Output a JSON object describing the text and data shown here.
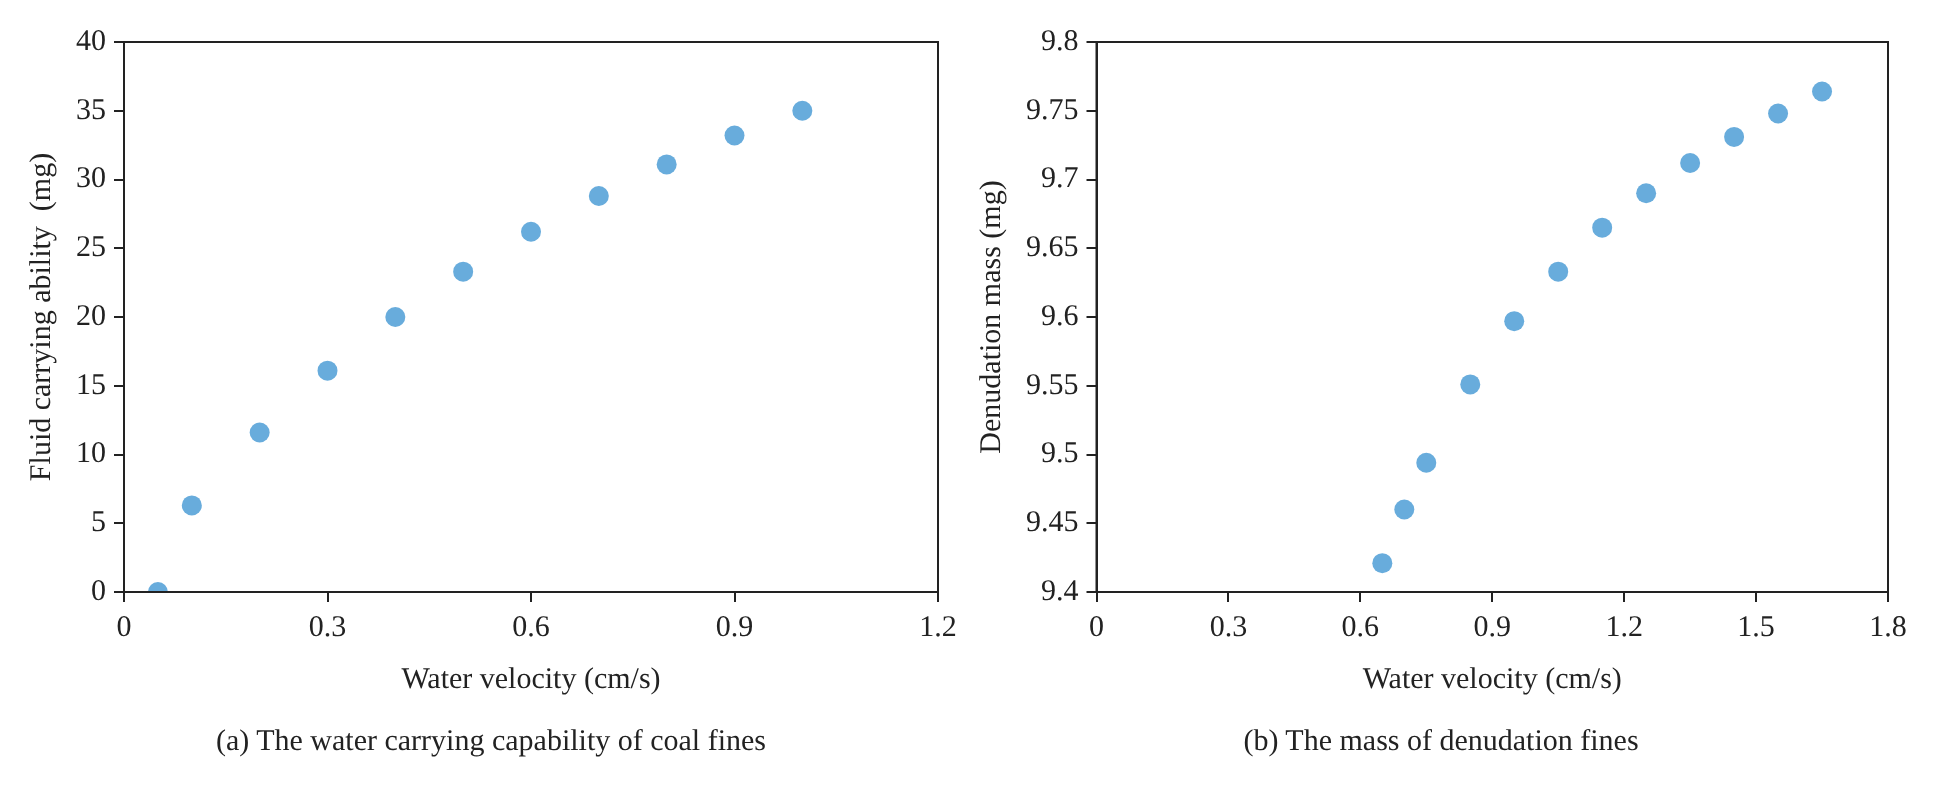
{
  "chart_data": [
    {
      "type": "scatter",
      "xlabel": "Water velocity (cm/s)",
      "ylabel": "Fluid carrying ability  (mg)",
      "annotations": [
        "(a) The water carrying capability of coal fines"
      ],
      "x": [
        0.05,
        0.1,
        0.2,
        0.3,
        0.4,
        0.5,
        0.6,
        0.7,
        0.8,
        0.9,
        1.0
      ],
      "series": [
        {
          "color": "#68acdc",
          "values": [
            0,
            6.3,
            11.6,
            16.1,
            20,
            23.3,
            26.2,
            28.8,
            31.1,
            33.2,
            35
          ]
        }
      ],
      "xlim": [
        0,
        1.2
      ],
      "xticks": [
        0,
        0.3,
        0.6,
        0.9,
        1.2
      ],
      "ylim": [
        0,
        40
      ],
      "yticks": [
        0,
        5,
        10,
        15,
        20,
        25,
        30,
        35,
        40
      ],
      "grid": false,
      "legend": false,
      "marker": "circle"
    },
    {
      "type": "scatter",
      "xlabel": "Water velocity (cm/s)",
      "ylabel": "Denudation mass (mg)",
      "annotations": [
        "(b) The mass of denudation fines"
      ],
      "x": [
        0.65,
        0.7,
        0.75,
        0.85,
        0.95,
        1.05,
        1.15,
        1.25,
        1.35,
        1.45,
        1.55,
        1.65
      ],
      "series": [
        {
          "color": "#68acdc",
          "values": [
            9.421,
            9.46,
            9.494,
            9.551,
            9.597,
            9.633,
            9.665,
            9.69,
            9.712,
            9.731,
            9.748,
            9.764
          ]
        }
      ],
      "xlim": [
        0,
        1.8
      ],
      "xticks": [
        0,
        0.3,
        0.6,
        0.9,
        1.2,
        1.5,
        1.8
      ],
      "ylim": [
        9.4,
        9.8
      ],
      "yticks": [
        9.4,
        9.45,
        9.5,
        9.55,
        9.6,
        9.65,
        9.7,
        9.75,
        9.8
      ],
      "grid": false,
      "legend": false,
      "marker": "circle"
    }
  ]
}
